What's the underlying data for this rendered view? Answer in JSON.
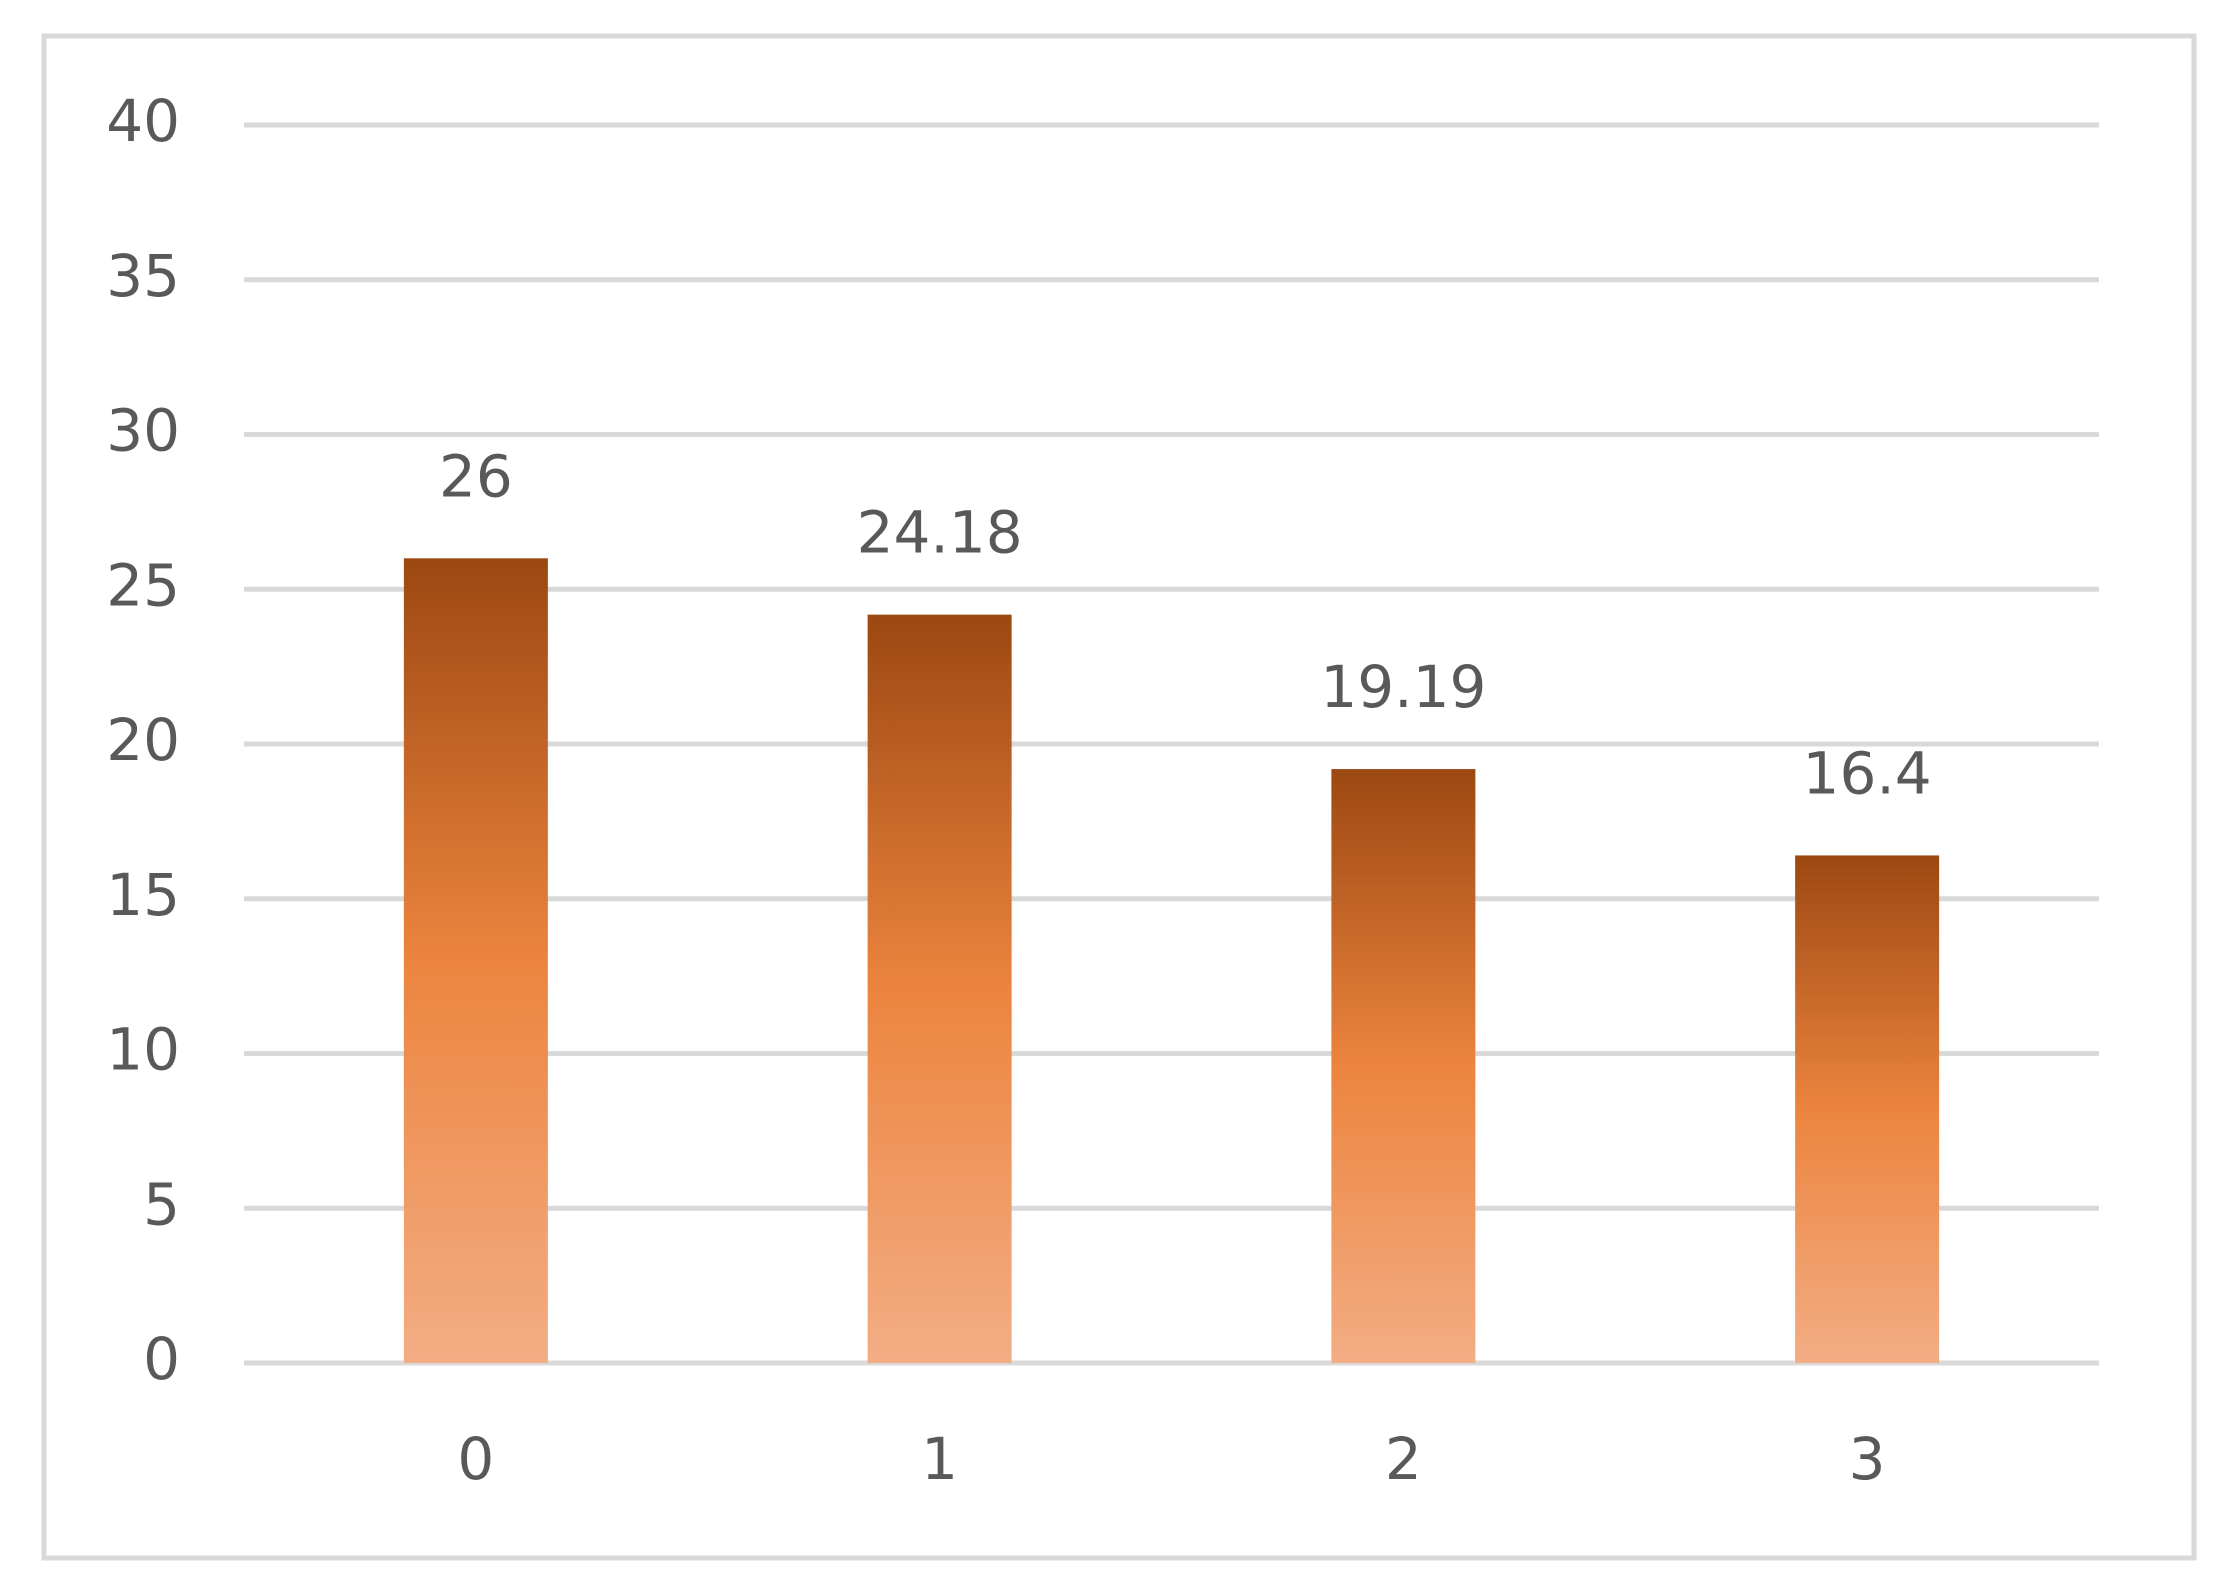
{
  "chart_data": {
    "type": "bar",
    "categories": [
      "0",
      "1",
      "2",
      "3"
    ],
    "values": [
      26,
      24.18,
      19.19,
      16.4
    ],
    "gradient": [
      "#9c4812",
      "#ec843e",
      "#f3ad84"
    ],
    "ylim": [
      0,
      40
    ],
    "yticks": [
      0,
      5,
      10,
      15,
      20,
      25,
      30,
      35,
      40
    ],
    "grid": true,
    "data_labels": true
  }
}
